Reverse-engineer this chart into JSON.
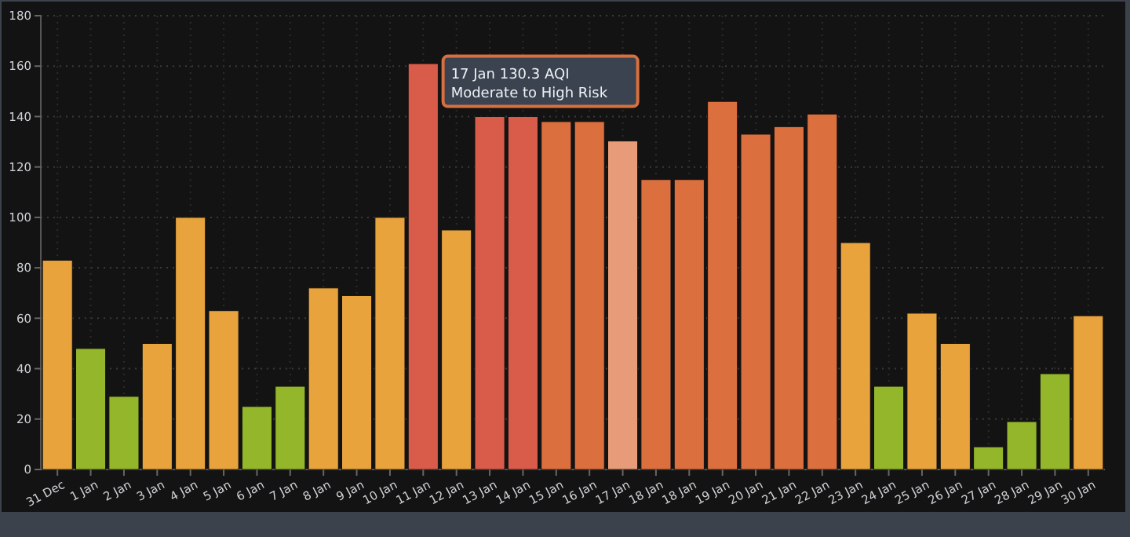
{
  "chart_data": {
    "type": "bar",
    "categories": [
      "31 Dec",
      "1 Jan",
      "2 Jan",
      "3 Jan",
      "4 Jan",
      "5 Jan",
      "6 Jan",
      "7 Jan",
      "8 Jan",
      "9 Jan",
      "10 Jan",
      "11 Jan",
      "12 Jan",
      "13 Jan",
      "14 Jan",
      "15 Jan",
      "16 Jan",
      "17 Jan",
      "18 Jan",
      "18 Jan",
      "19 Jan",
      "20 Jan",
      "21 Jan",
      "22 Jan",
      "23 Jan",
      "24 Jan",
      "25 Jan",
      "26 Jan",
      "27 Jan",
      "28 Jan",
      "29 Jan",
      "30 Jan"
    ],
    "values": [
      83,
      48,
      29,
      50,
      100,
      63,
      25,
      33,
      72,
      69,
      100,
      161,
      95,
      140,
      140,
      138,
      138,
      130.3,
      115,
      115,
      146,
      133,
      136,
      141,
      90,
      33,
      62,
      50,
      9,
      19,
      38,
      61
    ],
    "colors": [
      "#e8a33d",
      "#93b62a",
      "#93b62a",
      "#e8a33d",
      "#e8a33d",
      "#e8a33d",
      "#93b62a",
      "#93b62a",
      "#e8a33d",
      "#e8a33d",
      "#e8a33d",
      "#d95c4a",
      "#e8a33d",
      "#d95c4a",
      "#d95c4a",
      "#dc6f3e",
      "#dc6f3e",
      "#e89b78",
      "#dc6f3e",
      "#dc6f3e",
      "#dc6f3e",
      "#dc6f3e",
      "#dc6f3e",
      "#dc6f3e",
      "#e8a33d",
      "#93b62a",
      "#e8a33d",
      "#e8a33d",
      "#93b62a",
      "#93b62a",
      "#93b62a",
      "#e8a33d"
    ],
    "ylim": [
      0,
      180
    ],
    "yticks": [
      0,
      20,
      40,
      60,
      80,
      100,
      120,
      140,
      160,
      180
    ],
    "grid": true,
    "annotations": [
      {
        "text": "17 Jan 130.3 AQI\nModerate to High Risk",
        "x": "17 Jan",
        "y": 130.3
      }
    ]
  }
}
